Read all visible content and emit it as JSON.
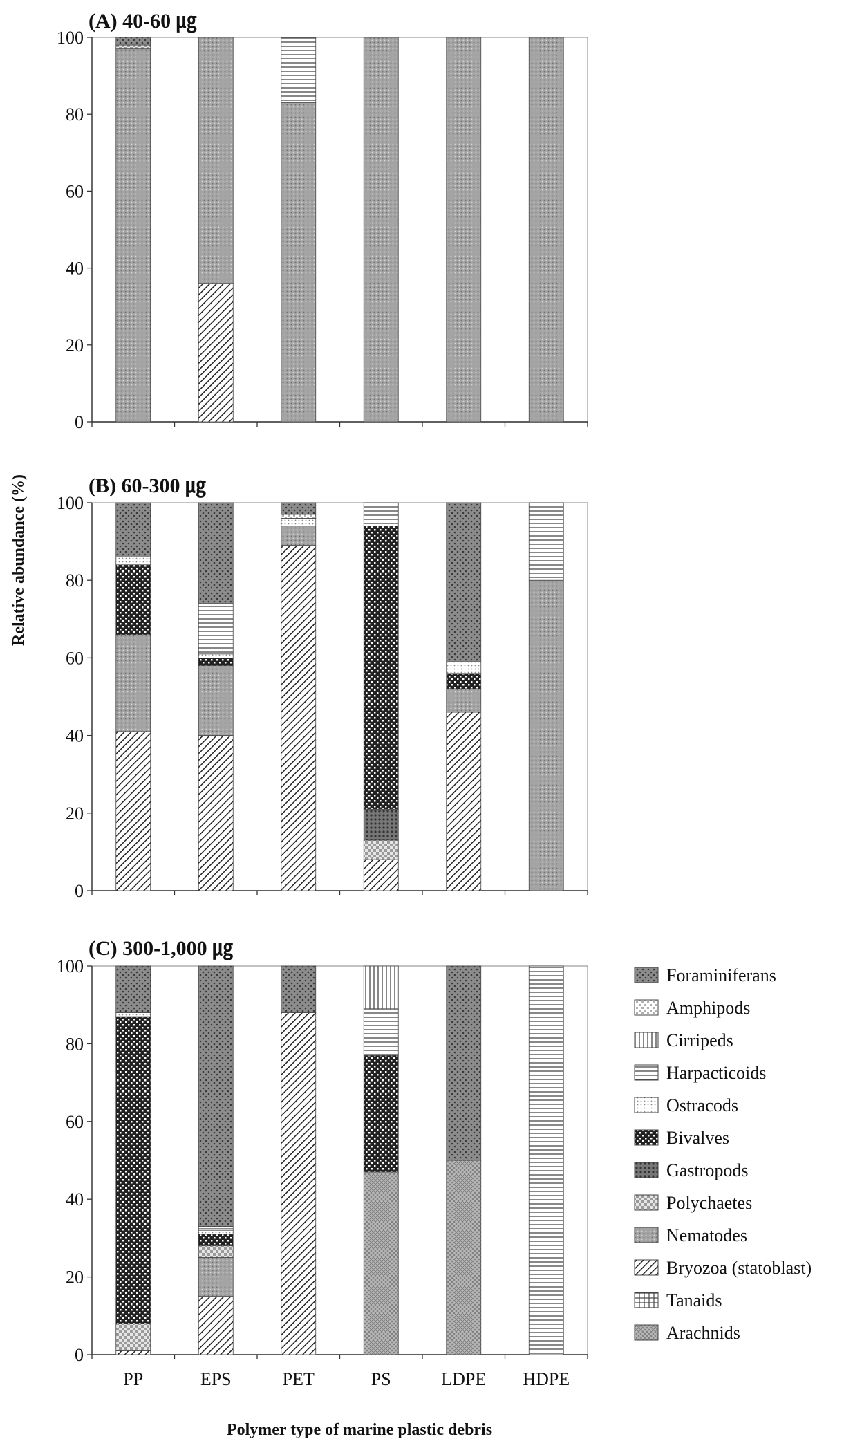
{
  "chart_data": {
    "type": "stacked-bar",
    "ylabel": "Relative abundance (%)",
    "xlabel": "Polymer type of marine plastic debris",
    "categories": [
      "PP",
      "EPS",
      "PET",
      "PS",
      "LDPE",
      "HDPE"
    ],
    "ylim": [
      0,
      100
    ],
    "yticks": [
      "0",
      "20",
      "40",
      "60",
      "80",
      "100"
    ],
    "legend_position": "right",
    "legend": [
      {
        "name": "Foraminiferans",
        "pattern": "forams"
      },
      {
        "name": "Amphipods",
        "pattern": "amphipods"
      },
      {
        "name": "Cirripeds",
        "pattern": "cirripeds"
      },
      {
        "name": "Harpacticoids",
        "pattern": "harpacticoids"
      },
      {
        "name": "Ostracods",
        "pattern": "ostracods"
      },
      {
        "name": "Bivalves",
        "pattern": "bivalves"
      },
      {
        "name": "Gastropods",
        "pattern": "gastropods"
      },
      {
        "name": "Polychaetes",
        "pattern": "polychaetes"
      },
      {
        "name": "Nematodes",
        "pattern": "nematodes"
      },
      {
        "name": "Bryozoa (statoblast)",
        "pattern": "bryozoa"
      },
      {
        "name": "Tanaids",
        "pattern": "tanaids"
      },
      {
        "name": "Arachnids",
        "pattern": "arachnids"
      }
    ],
    "stack_order": [
      "Bryozoa (statoblast)",
      "Arachnids",
      "Tanaids",
      "Nematodes",
      "Polychaetes",
      "Gastropods",
      "Bivalves",
      "Ostracods",
      "Amphipods",
      "Harpacticoids",
      "Cirripeds",
      "Foraminiferans"
    ],
    "panels": [
      {
        "title": "(A) 40-60 ㎍",
        "bars": [
          {
            "Nematodes": 97,
            "Polychaetes": 1,
            "Foraminiferans": 2
          },
          {
            "Bryozoa (statoblast)": 36,
            "Nematodes": 64
          },
          {
            "Nematodes": 83,
            "Harpacticoids": 17
          },
          {
            "Nematodes": 100
          },
          {
            "Nematodes": 100
          },
          {
            "Nematodes": 100
          }
        ]
      },
      {
        "title": "(B) 60-300 ㎍",
        "bars": [
          {
            "Bryozoa (statoblast)": 41,
            "Nematodes": 25,
            "Ostracods": 2,
            "Bivalves": 18,
            "Foraminiferans": 14
          },
          {
            "Bryozoa (statoblast)": 40,
            "Nematodes": 18,
            "Ostracods": 1,
            "Bivalves": 2,
            "Harpacticoids": 13,
            "Foraminiferans": 26
          },
          {
            "Bryozoa (statoblast)": 89,
            "Nematodes": 5,
            "Ostracods": 2,
            "Amphipods": 1,
            "Foraminiferans": 3
          },
          {
            "Bryozoa (statoblast)": 8,
            "Polychaetes": 5,
            "Gastropods": 8,
            "Bivalves": 73,
            "Harpacticoids": 6
          },
          {
            "Bryozoa (statoblast)": 46,
            "Nematodes": 6,
            "Ostracods": 3,
            "Bivalves": 4,
            "Foraminiferans": 41
          },
          {
            "Nematodes": 80,
            "Harpacticoids": 20
          }
        ]
      },
      {
        "title": "(C) 300-1,000 ㎍",
        "bars": [
          {
            "Bryozoa (statoblast)": 1,
            "Polychaetes": 7,
            "Ostracods": 1,
            "Bivalves": 79,
            "Foraminiferans": 12
          },
          {
            "Bryozoa (statoblast)": 15,
            "Polychaetes": 3,
            "Nematodes": 10,
            "Bivalves": 3,
            "Ostracods": 1,
            "Harpacticoids": 1,
            "Foraminiferans": 67
          },
          {
            "Bryozoa (statoblast)": 88,
            "Foraminiferans": 12
          },
          {
            "Arachnids": 47,
            "Bivalves": 30,
            "Harpacticoids": 12,
            "Cirripeds": 11
          },
          {
            "Arachnids": 50,
            "Foraminiferans": 50
          },
          {
            "Harpacticoids": 100
          }
        ]
      }
    ]
  }
}
